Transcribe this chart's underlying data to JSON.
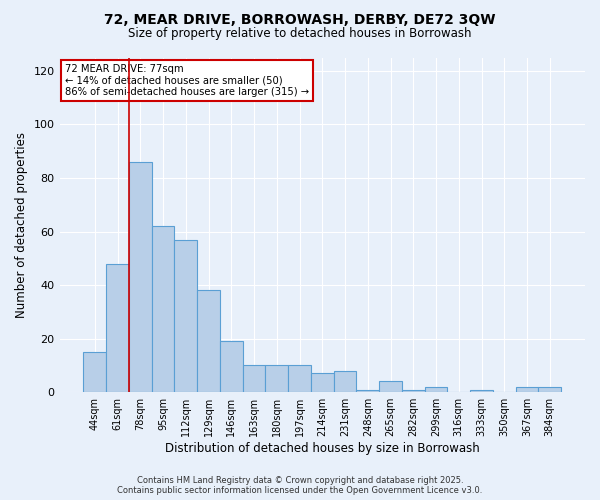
{
  "title_line1": "72, MEAR DRIVE, BORROWASH, DERBY, DE72 3QW",
  "title_line2": "Size of property relative to detached houses in Borrowash",
  "xlabel": "Distribution of detached houses by size in Borrowash",
  "ylabel": "Number of detached properties",
  "categories": [
    "44sqm",
    "61sqm",
    "78sqm",
    "95sqm",
    "112sqm",
    "129sqm",
    "146sqm",
    "163sqm",
    "180sqm",
    "197sqm",
    "214sqm",
    "231sqm",
    "248sqm",
    "265sqm",
    "282sqm",
    "299sqm",
    "316sqm",
    "333sqm",
    "350sqm",
    "367sqm",
    "384sqm"
  ],
  "values": [
    15,
    48,
    86,
    62,
    57,
    38,
    19,
    10,
    10,
    10,
    7,
    8,
    1,
    4,
    1,
    2,
    0,
    1,
    0,
    2,
    2
  ],
  "bar_color": "#b8cfe8",
  "bar_edge_color": "#5a9fd4",
  "bar_linewidth": 0.8,
  "vline_x": 1.5,
  "vline_color": "#cc0000",
  "annotation_title": "72 MEAR DRIVE: 77sqm",
  "annotation_line2": "← 14% of detached houses are smaller (50)",
  "annotation_line3": "86% of semi-detached houses are larger (315) →",
  "annotation_box_color": "#ffffff",
  "annotation_border_color": "#cc0000",
  "ylim": [
    0,
    125
  ],
  "yticks": [
    0,
    20,
    40,
    60,
    80,
    100,
    120
  ],
  "background_color": "#e8f0fa",
  "grid_color": "#ffffff",
  "footer_line1": "Contains HM Land Registry data © Crown copyright and database right 2025.",
  "footer_line2": "Contains public sector information licensed under the Open Government Licence v3.0.",
  "fig_width": 6.0,
  "fig_height": 5.0,
  "dpi": 100
}
